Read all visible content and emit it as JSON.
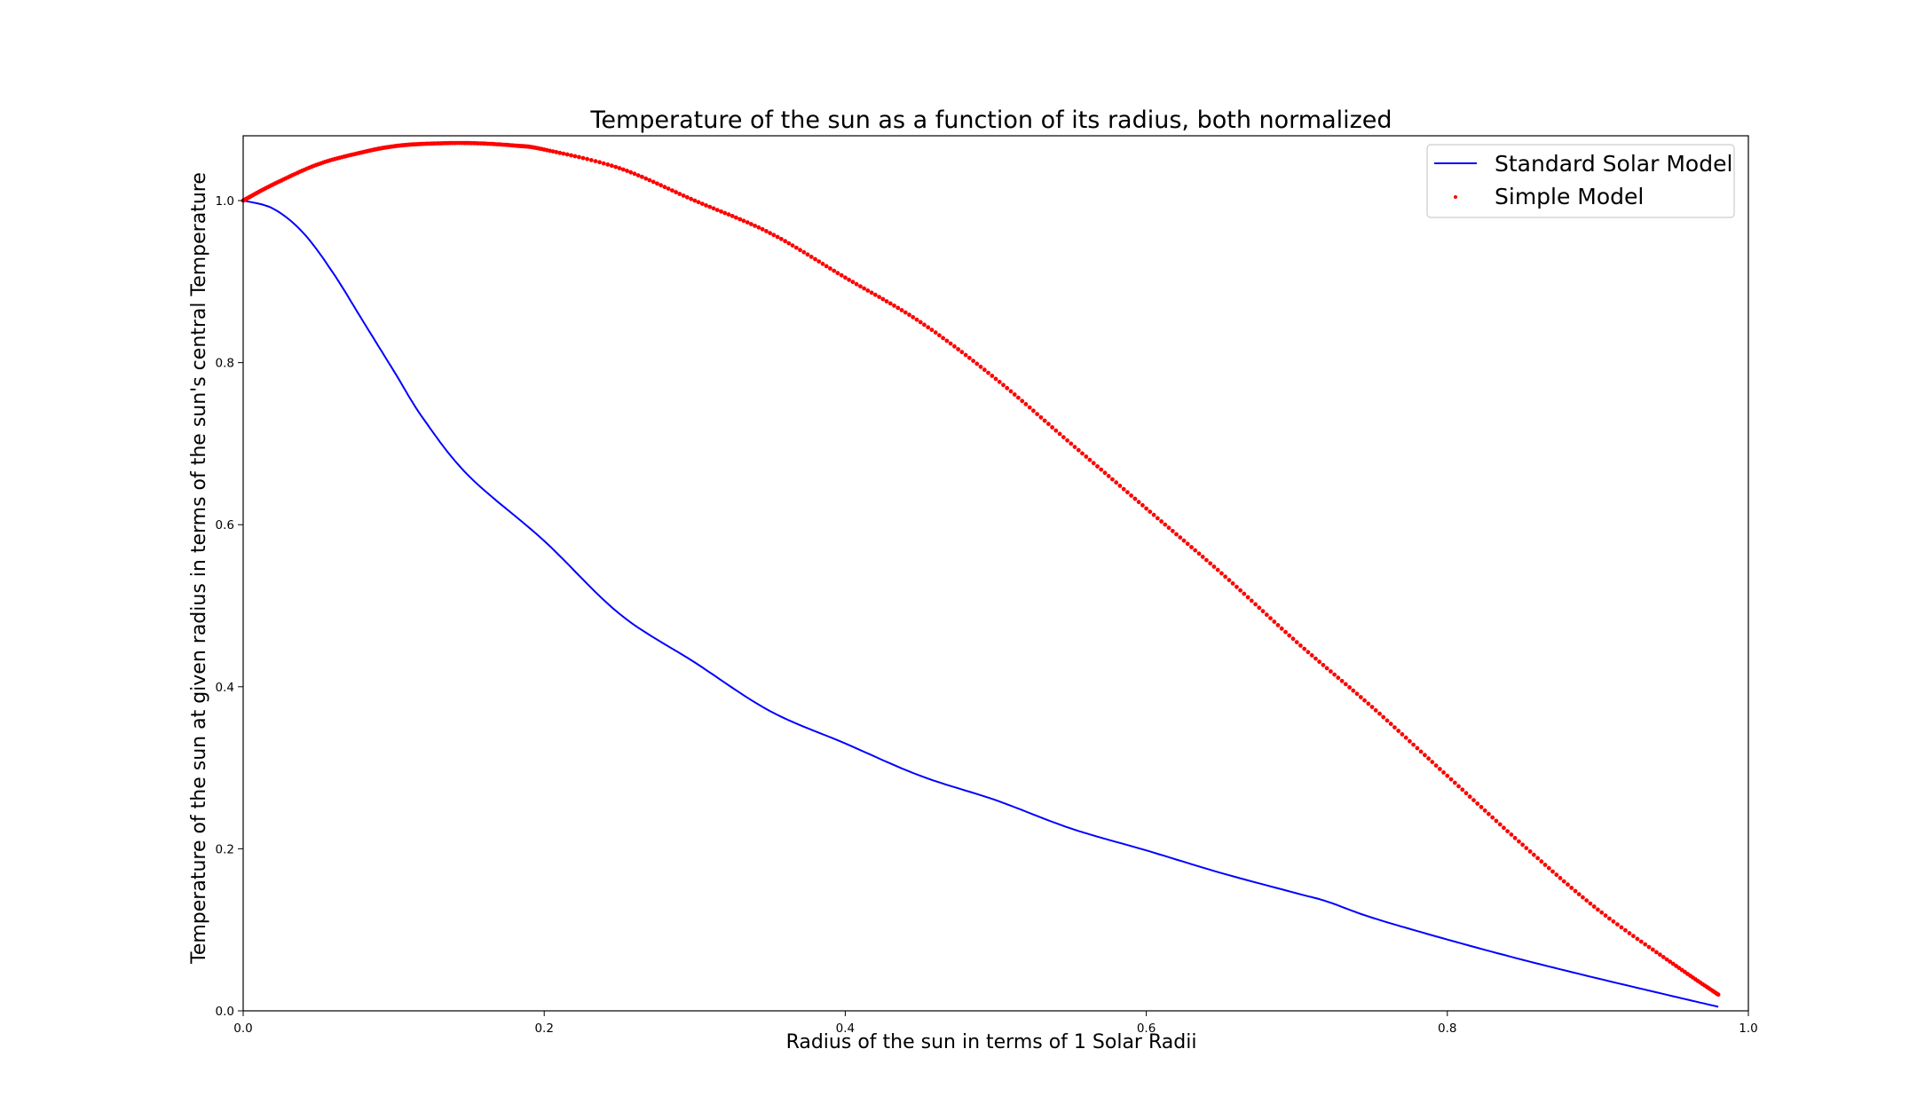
{
  "chart_data": {
    "type": "line",
    "title": "Temperature of the sun as a function of its radius, both normalized",
    "xlabel": "Radius of the sun in terms of 1 Solar Radii",
    "ylabel": "Temperature of the sun at given radius in terms of the sun's central Temperature",
    "xlim": [
      0.0,
      1.0
    ],
    "ylim": [
      0.0,
      1.08
    ],
    "xticks": [
      "0.0",
      "0.2",
      "0.4",
      "0.6",
      "0.8",
      "1.0"
    ],
    "yticks": [
      "0.0",
      "0.2",
      "0.4",
      "0.6",
      "0.8",
      "1.0"
    ],
    "grid": false,
    "legend_position": "top-right",
    "series": [
      {
        "name": "Standard Solar Model",
        "style": "line",
        "color": "#0000ff",
        "x": [
          0.0,
          0.02,
          0.04,
          0.06,
          0.08,
          0.1,
          0.12,
          0.15,
          0.2,
          0.25,
          0.3,
          0.35,
          0.4,
          0.45,
          0.5,
          0.55,
          0.6,
          0.65,
          0.7,
          0.72,
          0.75,
          0.8,
          0.85,
          0.9,
          0.95,
          0.98
        ],
        "y": [
          1.0,
          0.99,
          0.96,
          0.91,
          0.85,
          0.79,
          0.73,
          0.66,
          0.58,
          0.49,
          0.43,
          0.37,
          0.33,
          0.29,
          0.26,
          0.225,
          0.198,
          0.17,
          0.145,
          0.135,
          0.115,
          0.088,
          0.063,
          0.04,
          0.018,
          0.005
        ]
      },
      {
        "name": "Simple Model",
        "style": "scatter",
        "color": "#ff0000",
        "x": [
          0.0,
          0.02,
          0.05,
          0.08,
          0.1,
          0.12,
          0.15,
          0.18,
          0.2,
          0.25,
          0.3,
          0.35,
          0.4,
          0.45,
          0.5,
          0.55,
          0.6,
          0.65,
          0.7,
          0.75,
          0.8,
          0.85,
          0.9,
          0.95,
          0.98
        ],
        "y": [
          1.0,
          1.02,
          1.045,
          1.06,
          1.067,
          1.07,
          1.071,
          1.068,
          1.063,
          1.04,
          1.0,
          0.96,
          0.905,
          0.85,
          0.78,
          0.7,
          0.62,
          0.54,
          0.455,
          0.375,
          0.29,
          0.205,
          0.125,
          0.058,
          0.02
        ]
      }
    ]
  }
}
